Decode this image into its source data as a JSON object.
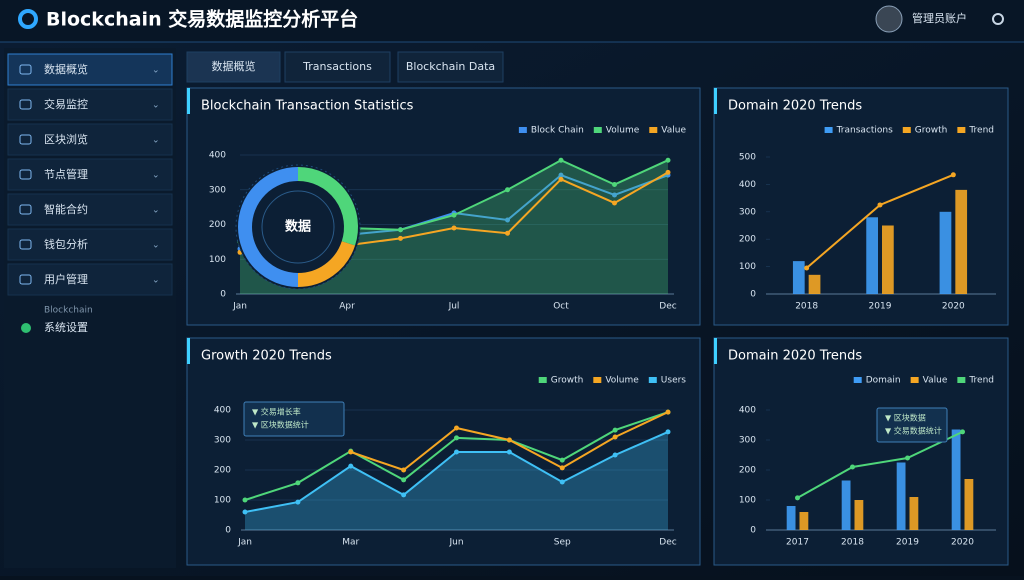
{
  "header": {
    "title": "Blockchain 交易数据监控分析平台",
    "user": "管理员账户"
  },
  "sidebar": [
    "数据概览",
    "交易监控",
    "区块浏览",
    "节点管理",
    "智能合约",
    "钱包分析",
    "用户管理"
  ],
  "sidebar_footer": {
    "caption": "Blockchain",
    "label": "系统设置"
  },
  "tabs": [
    "数据概览",
    "Transactions",
    "Blockchain Data"
  ],
  "chart_data": [
    {
      "type": "line",
      "title": "Blockchain Transaction Statistics",
      "categories": [
        "Jan",
        null,
        "Apr",
        null,
        "Jul",
        null,
        "Oct",
        null,
        "Dec"
      ],
      "ylim": [
        0,
        400
      ],
      "yticks": [
        0,
        100,
        200,
        300,
        400
      ],
      "grid": true,
      "series": [
        {
          "name": "Block Chain",
          "type": "line",
          "color": "#3f8ff0",
          "values": [
            130,
            150,
            170,
            185,
            233,
            213,
            342,
            285,
            342
          ]
        },
        {
          "name": "Volume",
          "type": "area",
          "color": "#4fd67a",
          "values": [
            150,
            170,
            190,
            185,
            227,
            300,
            385,
            315,
            385
          ]
        },
        {
          "name": "Value",
          "type": "line",
          "color": "#f5a623",
          "values": [
            120,
            130,
            140,
            160,
            190,
            175,
            330,
            262,
            350
          ]
        }
      ],
      "donut": {
        "label": "数据",
        "values": [
          30,
          20,
          50
        ],
        "colors": [
          "#4fd67a",
          "#f5a623",
          "#3f8ff0"
        ]
      }
    },
    {
      "type": "bar",
      "title": "Domain 2020 Trends",
      "categories": [
        "2018",
        "2019",
        "2020"
      ],
      "ylim": [
        0,
        500
      ],
      "yticks": [
        0,
        100,
        200,
        300,
        400,
        500
      ],
      "grid": false,
      "series": [
        {
          "name": "Transactions",
          "type": "bar",
          "color": "#3f9cf5",
          "values": [
            120,
            280,
            300
          ]
        },
        {
          "name": "Growth",
          "type": "bar",
          "color": "#f5a623",
          "values": [
            70,
            250,
            380
          ]
        },
        {
          "name": "Trend",
          "type": "line",
          "color": "#f5a623",
          "values": [
            95,
            325,
            435
          ]
        }
      ]
    },
    {
      "type": "line",
      "title": "Growth 2020 Trends",
      "categories": [
        "Jan",
        null,
        "Mar",
        null,
        "Jun",
        null,
        "Sep",
        null,
        "Dec"
      ],
      "ylim": [
        0,
        400
      ],
      "yticks": [
        0,
        100,
        200,
        300,
        400
      ],
      "grid": true,
      "series": [
        {
          "name": "Growth",
          "type": "line",
          "color": "#4fd67a",
          "values": [
            100,
            157,
            263,
            167,
            307,
            300,
            233,
            333,
            393
          ]
        },
        {
          "name": "Volume",
          "type": "line",
          "color": "#f5a623",
          "values": [
            null,
            null,
            260,
            200,
            340,
            300,
            207,
            310,
            393
          ]
        },
        {
          "name": "Users",
          "type": "area",
          "color": "#3fc0f5",
          "values": [
            60,
            93,
            213,
            117,
            260,
            260,
            160,
            250,
            327
          ]
        }
      ],
      "tooltip": [
        "▼ 交易增长率",
        "▼ 区块数据统计"
      ]
    },
    {
      "type": "bar",
      "title": "Domain 2020 Trends",
      "categories": [
        "2017",
        "2018",
        "2019",
        "2020"
      ],
      "ylim": [
        0,
        400
      ],
      "yticks": [
        0,
        100,
        200,
        300,
        400
      ],
      "grid": false,
      "series": [
        {
          "name": "Domain",
          "type": "bar",
          "color": "#3f9cf5",
          "values": [
            80,
            165,
            225,
            335
          ]
        },
        {
          "name": "Value",
          "type": "bar",
          "color": "#f5a623",
          "values": [
            60,
            100,
            110,
            170
          ]
        },
        {
          "name": "Trend",
          "type": "line",
          "color": "#4fd67a",
          "values": [
            107,
            210,
            240,
            327
          ]
        }
      ],
      "tooltip": [
        "▼ 区块数据",
        "▼ 交易数据统计"
      ]
    }
  ]
}
